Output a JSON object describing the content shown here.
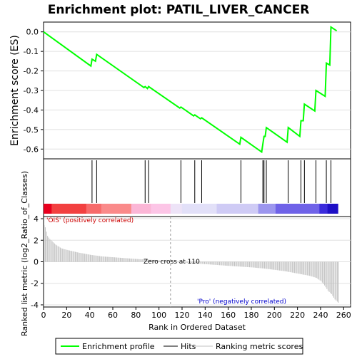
{
  "chart_data": {
    "type": "line",
    "title": "Enrichment plot: PATIL_LIVER_CANCER",
    "es_panel": {
      "ylabel": "Enrichment score (ES)",
      "ylim": [
        -0.65,
        0.05
      ],
      "yticks": [
        "0.0",
        "-0.1",
        "-0.2",
        "-0.3",
        "-0.4",
        "-0.5",
        "-0.6"
      ],
      "ytick_values": [
        0.0,
        -0.1,
        -0.2,
        -0.3,
        -0.4,
        -0.5,
        -0.6
      ],
      "series": [
        {
          "name": "Enrichment profile",
          "color": "#00ff00",
          "x": [
            0,
            41,
            42,
            45,
            46,
            87,
            88,
            90,
            91,
            118,
            119,
            130,
            131,
            136,
            137,
            170,
            171,
            189,
            190,
            191,
            192,
            193,
            211,
            212,
            222,
            223,
            225,
            226,
            235,
            236,
            244,
            245,
            248,
            249,
            254
          ],
          "y": [
            0.0,
            -0.175,
            -0.14,
            -0.15,
            -0.115,
            -0.285,
            -0.28,
            -0.29,
            -0.28,
            -0.39,
            -0.385,
            -0.43,
            -0.425,
            -0.445,
            -0.44,
            -0.575,
            -0.54,
            -0.615,
            -0.575,
            -0.535,
            -0.535,
            -0.49,
            -0.565,
            -0.49,
            -0.535,
            -0.455,
            -0.455,
            -0.37,
            -0.405,
            -0.3,
            -0.33,
            -0.16,
            -0.17,
            0.025,
            0.005
          ]
        }
      ]
    },
    "hits": {
      "legend": "Hits",
      "positions": [
        42,
        46,
        88,
        91,
        119,
        131,
        137,
        171,
        190,
        191,
        193,
        212,
        223,
        226,
        236,
        245,
        249
      ]
    },
    "rank_bar": {
      "segments": [
        {
          "x0": 0,
          "x1": 7,
          "color": "#e8001e"
        },
        {
          "x0": 7,
          "x1": 37,
          "color": "#f24040"
        },
        {
          "x0": 37,
          "x1": 50,
          "color": "#f76a6a"
        },
        {
          "x0": 50,
          "x1": 76,
          "color": "#fa8a8a"
        },
        {
          "x0": 76,
          "x1": 93,
          "color": "#fbb6d6"
        },
        {
          "x0": 93,
          "x1": 110,
          "color": "#fcc5e6"
        },
        {
          "x0": 110,
          "x1": 120,
          "color": "#ede3f7"
        },
        {
          "x0": 120,
          "x1": 150,
          "color": "#e2e0f8"
        },
        {
          "x0": 150,
          "x1": 186,
          "color": "#cfcbf5"
        },
        {
          "x0": 186,
          "x1": 201,
          "color": "#9c96ee"
        },
        {
          "x0": 201,
          "x1": 239,
          "color": "#6f62e8"
        },
        {
          "x0": 239,
          "x1": 246,
          "color": "#3b2bdc"
        },
        {
          "x0": 246,
          "x1": 255,
          "color": "#1e0fc6"
        }
      ]
    },
    "metric_panel": {
      "ylabel": "Ranked list metric (log2_Ratio_of_Classes)",
      "xlabel": "Rank in Ordered Dataset",
      "ylim": [
        -4.2,
        4.2
      ],
      "yticks": [
        "4",
        "2",
        "0",
        "-2",
        "-4"
      ],
      "ytick_values": [
        4,
        2,
        0,
        -2,
        -4
      ],
      "xticks": [
        "0",
        "20",
        "40",
        "60",
        "80",
        "100",
        "120",
        "140",
        "160",
        "180",
        "200",
        "220",
        "240",
        "260"
      ],
      "xtick_values": [
        0,
        20,
        40,
        60,
        80,
        100,
        120,
        140,
        160,
        180,
        200,
        220,
        240,
        260
      ],
      "xlim": [
        0,
        266
      ],
      "profile_ranks": [
        0,
        1,
        3,
        5,
        10,
        15,
        20,
        30,
        40,
        50,
        60,
        70,
        80,
        90,
        100,
        110,
        111,
        120,
        130,
        140,
        150,
        160,
        170,
        180,
        190,
        200,
        210,
        220,
        230,
        236,
        240,
        243,
        246,
        249,
        252,
        255
      ],
      "profile_values": [
        3.4,
        3.2,
        2.4,
        2.1,
        1.6,
        1.25,
        1.1,
        0.85,
        0.65,
        0.5,
        0.42,
        0.34,
        0.26,
        0.2,
        0.12,
        0.0,
        -0.02,
        -0.08,
        -0.15,
        -0.22,
        -0.3,
        -0.38,
        -0.45,
        -0.52,
        -0.62,
        -0.75,
        -0.9,
        -1.1,
        -1.3,
        -1.5,
        -1.8,
        -2.2,
        -2.7,
        -3.0,
        -3.5,
        -3.8
      ],
      "zero_cross_rank": 110,
      "zero_cross_label": "Zero cross at 110",
      "pos_label": "'OIS' (positively correlated)",
      "neg_label": "'Pro' (negatively correlated)"
    },
    "legend": {
      "placement": "bottom",
      "entries": [
        "Enrichment profile",
        "Hits",
        "Ranking metric scores"
      ]
    },
    "colors": {
      "profile": "#00ff00",
      "hit": "#000000",
      "metric": "#c0c0c0",
      "pos_label": "#cc0000",
      "neg_label": "#0000cc",
      "grid": "#e0e0e0"
    }
  }
}
